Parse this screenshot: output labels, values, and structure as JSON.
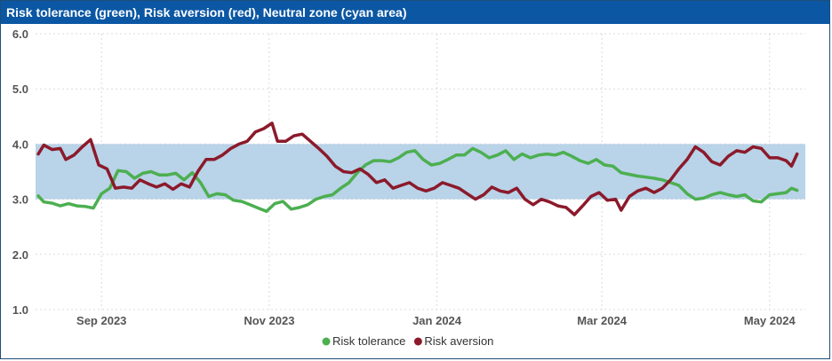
{
  "title": "Risk tolerance (green), Risk aversion (red), Neutral zone (cyan area)",
  "colors": {
    "header_bg": "#0b57a4",
    "risk_tolerance": "#4caf50",
    "risk_aversion": "#8b1a2b",
    "neutral_zone": "#b9d3e8"
  },
  "chart_data": {
    "type": "line",
    "title": "Risk tolerance (green), Risk aversion (red), Neutral zone (cyan area)",
    "x_tick_labels": [
      "Sep 2023",
      "Nov 2023",
      "Jan 2024",
      "Mar 2024",
      "May 2024"
    ],
    "x_tick_dates": [
      "2023-09-01",
      "2023-11-01",
      "2024-01-01",
      "2024-03-01",
      "2024-05-01"
    ],
    "y_tick_labels": [
      "6.0",
      "5.0",
      "4.0",
      "3.0",
      "2.0",
      "1.0"
    ],
    "ylim": [
      1.0,
      6.0
    ],
    "xlim": [
      "2023-08-08",
      "2024-05-14"
    ],
    "grid": true,
    "legend_position": "bottom",
    "neutral_zone": {
      "y_low": 3.0,
      "y_high": 4.0
    },
    "series": [
      {
        "name": "Risk tolerance",
        "color": "#4caf50",
        "points": [
          [
            "2023-08-09",
            3.06
          ],
          [
            "2023-08-11",
            2.95
          ],
          [
            "2023-08-14",
            2.93
          ],
          [
            "2023-08-17",
            2.88
          ],
          [
            "2023-08-20",
            2.92
          ],
          [
            "2023-08-23",
            2.88
          ],
          [
            "2023-08-26",
            2.87
          ],
          [
            "2023-08-29",
            2.84
          ],
          [
            "2023-09-01",
            3.1
          ],
          [
            "2023-09-04",
            3.2
          ],
          [
            "2023-09-07",
            3.52
          ],
          [
            "2023-09-10",
            3.5
          ],
          [
            "2023-09-13",
            3.38
          ],
          [
            "2023-09-16",
            3.47
          ],
          [
            "2023-09-19",
            3.5
          ],
          [
            "2023-09-22",
            3.44
          ],
          [
            "2023-09-25",
            3.44
          ],
          [
            "2023-09-28",
            3.47
          ],
          [
            "2023-10-01",
            3.35
          ],
          [
            "2023-10-04",
            3.48
          ],
          [
            "2023-10-07",
            3.3
          ],
          [
            "2023-10-10",
            3.05
          ],
          [
            "2023-10-13",
            3.1
          ],
          [
            "2023-10-16",
            3.08
          ],
          [
            "2023-10-19",
            2.98
          ],
          [
            "2023-10-22",
            2.96
          ],
          [
            "2023-10-25",
            2.9
          ],
          [
            "2023-10-28",
            2.84
          ],
          [
            "2023-10-31",
            2.78
          ],
          [
            "2023-11-03",
            2.92
          ],
          [
            "2023-11-06",
            2.96
          ],
          [
            "2023-11-09",
            2.82
          ],
          [
            "2023-11-12",
            2.85
          ],
          [
            "2023-11-15",
            2.9
          ],
          [
            "2023-11-18",
            3.0
          ],
          [
            "2023-11-21",
            3.05
          ],
          [
            "2023-11-24",
            3.08
          ],
          [
            "2023-11-27",
            3.2
          ],
          [
            "2023-11-30",
            3.3
          ],
          [
            "2023-12-03",
            3.48
          ],
          [
            "2023-12-06",
            3.62
          ],
          [
            "2023-12-09",
            3.7
          ],
          [
            "2023-12-12",
            3.7
          ],
          [
            "2023-12-15",
            3.68
          ],
          [
            "2023-12-18",
            3.75
          ],
          [
            "2023-12-21",
            3.85
          ],
          [
            "2023-12-24",
            3.88
          ],
          [
            "2023-12-27",
            3.72
          ],
          [
            "2023-12-30",
            3.62
          ],
          [
            "2024-01-02",
            3.65
          ],
          [
            "2024-01-05",
            3.72
          ],
          [
            "2024-01-08",
            3.8
          ],
          [
            "2024-01-11",
            3.8
          ],
          [
            "2024-01-14",
            3.92
          ],
          [
            "2024-01-17",
            3.85
          ],
          [
            "2024-01-20",
            3.75
          ],
          [
            "2024-01-23",
            3.8
          ],
          [
            "2024-01-26",
            3.88
          ],
          [
            "2024-01-29",
            3.72
          ],
          [
            "2024-02-01",
            3.82
          ],
          [
            "2024-02-04",
            3.75
          ],
          [
            "2024-02-07",
            3.8
          ],
          [
            "2024-02-10",
            3.82
          ],
          [
            "2024-02-13",
            3.8
          ],
          [
            "2024-02-16",
            3.85
          ],
          [
            "2024-02-19",
            3.78
          ],
          [
            "2024-02-22",
            3.7
          ],
          [
            "2024-02-25",
            3.65
          ],
          [
            "2024-02-28",
            3.72
          ],
          [
            "2024-03-02",
            3.62
          ],
          [
            "2024-03-05",
            3.6
          ],
          [
            "2024-03-08",
            3.48
          ],
          [
            "2024-03-11",
            3.45
          ],
          [
            "2024-03-14",
            3.42
          ],
          [
            "2024-03-17",
            3.4
          ],
          [
            "2024-03-20",
            3.38
          ],
          [
            "2024-03-23",
            3.35
          ],
          [
            "2024-03-26",
            3.3
          ],
          [
            "2024-03-29",
            3.25
          ],
          [
            "2024-04-01",
            3.1
          ],
          [
            "2024-04-04",
            3.0
          ],
          [
            "2024-04-07",
            3.02
          ],
          [
            "2024-04-10",
            3.08
          ],
          [
            "2024-04-13",
            3.12
          ],
          [
            "2024-04-16",
            3.08
          ],
          [
            "2024-04-19",
            3.05
          ],
          [
            "2024-04-22",
            3.08
          ],
          [
            "2024-04-25",
            2.97
          ],
          [
            "2024-04-28",
            2.95
          ],
          [
            "2024-05-01",
            3.08
          ],
          [
            "2024-05-04",
            3.1
          ],
          [
            "2024-05-07",
            3.12
          ],
          [
            "2024-05-09",
            3.2
          ],
          [
            "2024-05-11",
            3.16
          ]
        ]
      },
      {
        "name": "Risk aversion",
        "color": "#8b1a2b",
        "points": [
          [
            "2023-08-09",
            3.82
          ],
          [
            "2023-08-11",
            3.98
          ],
          [
            "2023-08-14",
            3.9
          ],
          [
            "2023-08-17",
            3.92
          ],
          [
            "2023-08-19",
            3.72
          ],
          [
            "2023-08-22",
            3.8
          ],
          [
            "2023-08-25",
            3.95
          ],
          [
            "2023-08-28",
            4.08
          ],
          [
            "2023-08-31",
            3.62
          ],
          [
            "2023-09-03",
            3.55
          ],
          [
            "2023-09-06",
            3.2
          ],
          [
            "2023-09-09",
            3.22
          ],
          [
            "2023-09-12",
            3.2
          ],
          [
            "2023-09-15",
            3.35
          ],
          [
            "2023-09-18",
            3.28
          ],
          [
            "2023-09-21",
            3.22
          ],
          [
            "2023-09-24",
            3.28
          ],
          [
            "2023-09-27",
            3.18
          ],
          [
            "2023-09-30",
            3.28
          ],
          [
            "2023-10-03",
            3.22
          ],
          [
            "2023-10-06",
            3.5
          ],
          [
            "2023-10-09",
            3.72
          ],
          [
            "2023-10-12",
            3.72
          ],
          [
            "2023-10-15",
            3.8
          ],
          [
            "2023-10-18",
            3.92
          ],
          [
            "2023-10-21",
            4.0
          ],
          [
            "2023-10-24",
            4.05
          ],
          [
            "2023-10-27",
            4.22
          ],
          [
            "2023-10-30",
            4.28
          ],
          [
            "2023-11-02",
            4.38
          ],
          [
            "2023-11-04",
            4.05
          ],
          [
            "2023-11-07",
            4.05
          ],
          [
            "2023-11-10",
            4.15
          ],
          [
            "2023-11-13",
            4.18
          ],
          [
            "2023-11-16",
            4.05
          ],
          [
            "2023-11-19",
            3.92
          ],
          [
            "2023-11-22",
            3.78
          ],
          [
            "2023-11-25",
            3.6
          ],
          [
            "2023-11-28",
            3.5
          ],
          [
            "2023-12-01",
            3.48
          ],
          [
            "2023-12-04",
            3.55
          ],
          [
            "2023-12-07",
            3.45
          ],
          [
            "2023-12-10",
            3.3
          ],
          [
            "2023-12-13",
            3.35
          ],
          [
            "2023-12-16",
            3.2
          ],
          [
            "2023-12-19",
            3.25
          ],
          [
            "2023-12-22",
            3.3
          ],
          [
            "2023-12-25",
            3.2
          ],
          [
            "2023-12-28",
            3.15
          ],
          [
            "2023-12-31",
            3.2
          ],
          [
            "2024-01-03",
            3.3
          ],
          [
            "2024-01-06",
            3.25
          ],
          [
            "2024-01-09",
            3.2
          ],
          [
            "2024-01-12",
            3.1
          ],
          [
            "2024-01-15",
            3.0
          ],
          [
            "2024-01-18",
            3.08
          ],
          [
            "2024-01-21",
            3.22
          ],
          [
            "2024-01-24",
            3.15
          ],
          [
            "2024-01-27",
            3.12
          ],
          [
            "2024-01-30",
            3.2
          ],
          [
            "2024-02-02",
            3.0
          ],
          [
            "2024-02-05",
            2.9
          ],
          [
            "2024-02-08",
            3.0
          ],
          [
            "2024-02-11",
            2.95
          ],
          [
            "2024-02-14",
            2.88
          ],
          [
            "2024-02-17",
            2.85
          ],
          [
            "2024-02-20",
            2.72
          ],
          [
            "2024-02-23",
            2.88
          ],
          [
            "2024-02-26",
            3.05
          ],
          [
            "2024-02-29",
            3.12
          ],
          [
            "2024-03-03",
            2.98
          ],
          [
            "2024-03-06",
            3.0
          ],
          [
            "2024-03-08",
            2.8
          ],
          [
            "2024-03-11",
            3.05
          ],
          [
            "2024-03-14",
            3.15
          ],
          [
            "2024-03-17",
            3.2
          ],
          [
            "2024-03-20",
            3.12
          ],
          [
            "2024-03-23",
            3.2
          ],
          [
            "2024-03-26",
            3.35
          ],
          [
            "2024-03-29",
            3.55
          ],
          [
            "2024-04-01",
            3.72
          ],
          [
            "2024-04-04",
            3.95
          ],
          [
            "2024-04-07",
            3.85
          ],
          [
            "2024-04-10",
            3.68
          ],
          [
            "2024-04-13",
            3.62
          ],
          [
            "2024-04-16",
            3.78
          ],
          [
            "2024-04-19",
            3.88
          ],
          [
            "2024-04-22",
            3.85
          ],
          [
            "2024-04-25",
            3.95
          ],
          [
            "2024-04-28",
            3.92
          ],
          [
            "2024-05-01",
            3.75
          ],
          [
            "2024-05-04",
            3.75
          ],
          [
            "2024-05-07",
            3.7
          ],
          [
            "2024-05-09",
            3.6
          ],
          [
            "2024-05-11",
            3.82
          ]
        ]
      }
    ]
  }
}
